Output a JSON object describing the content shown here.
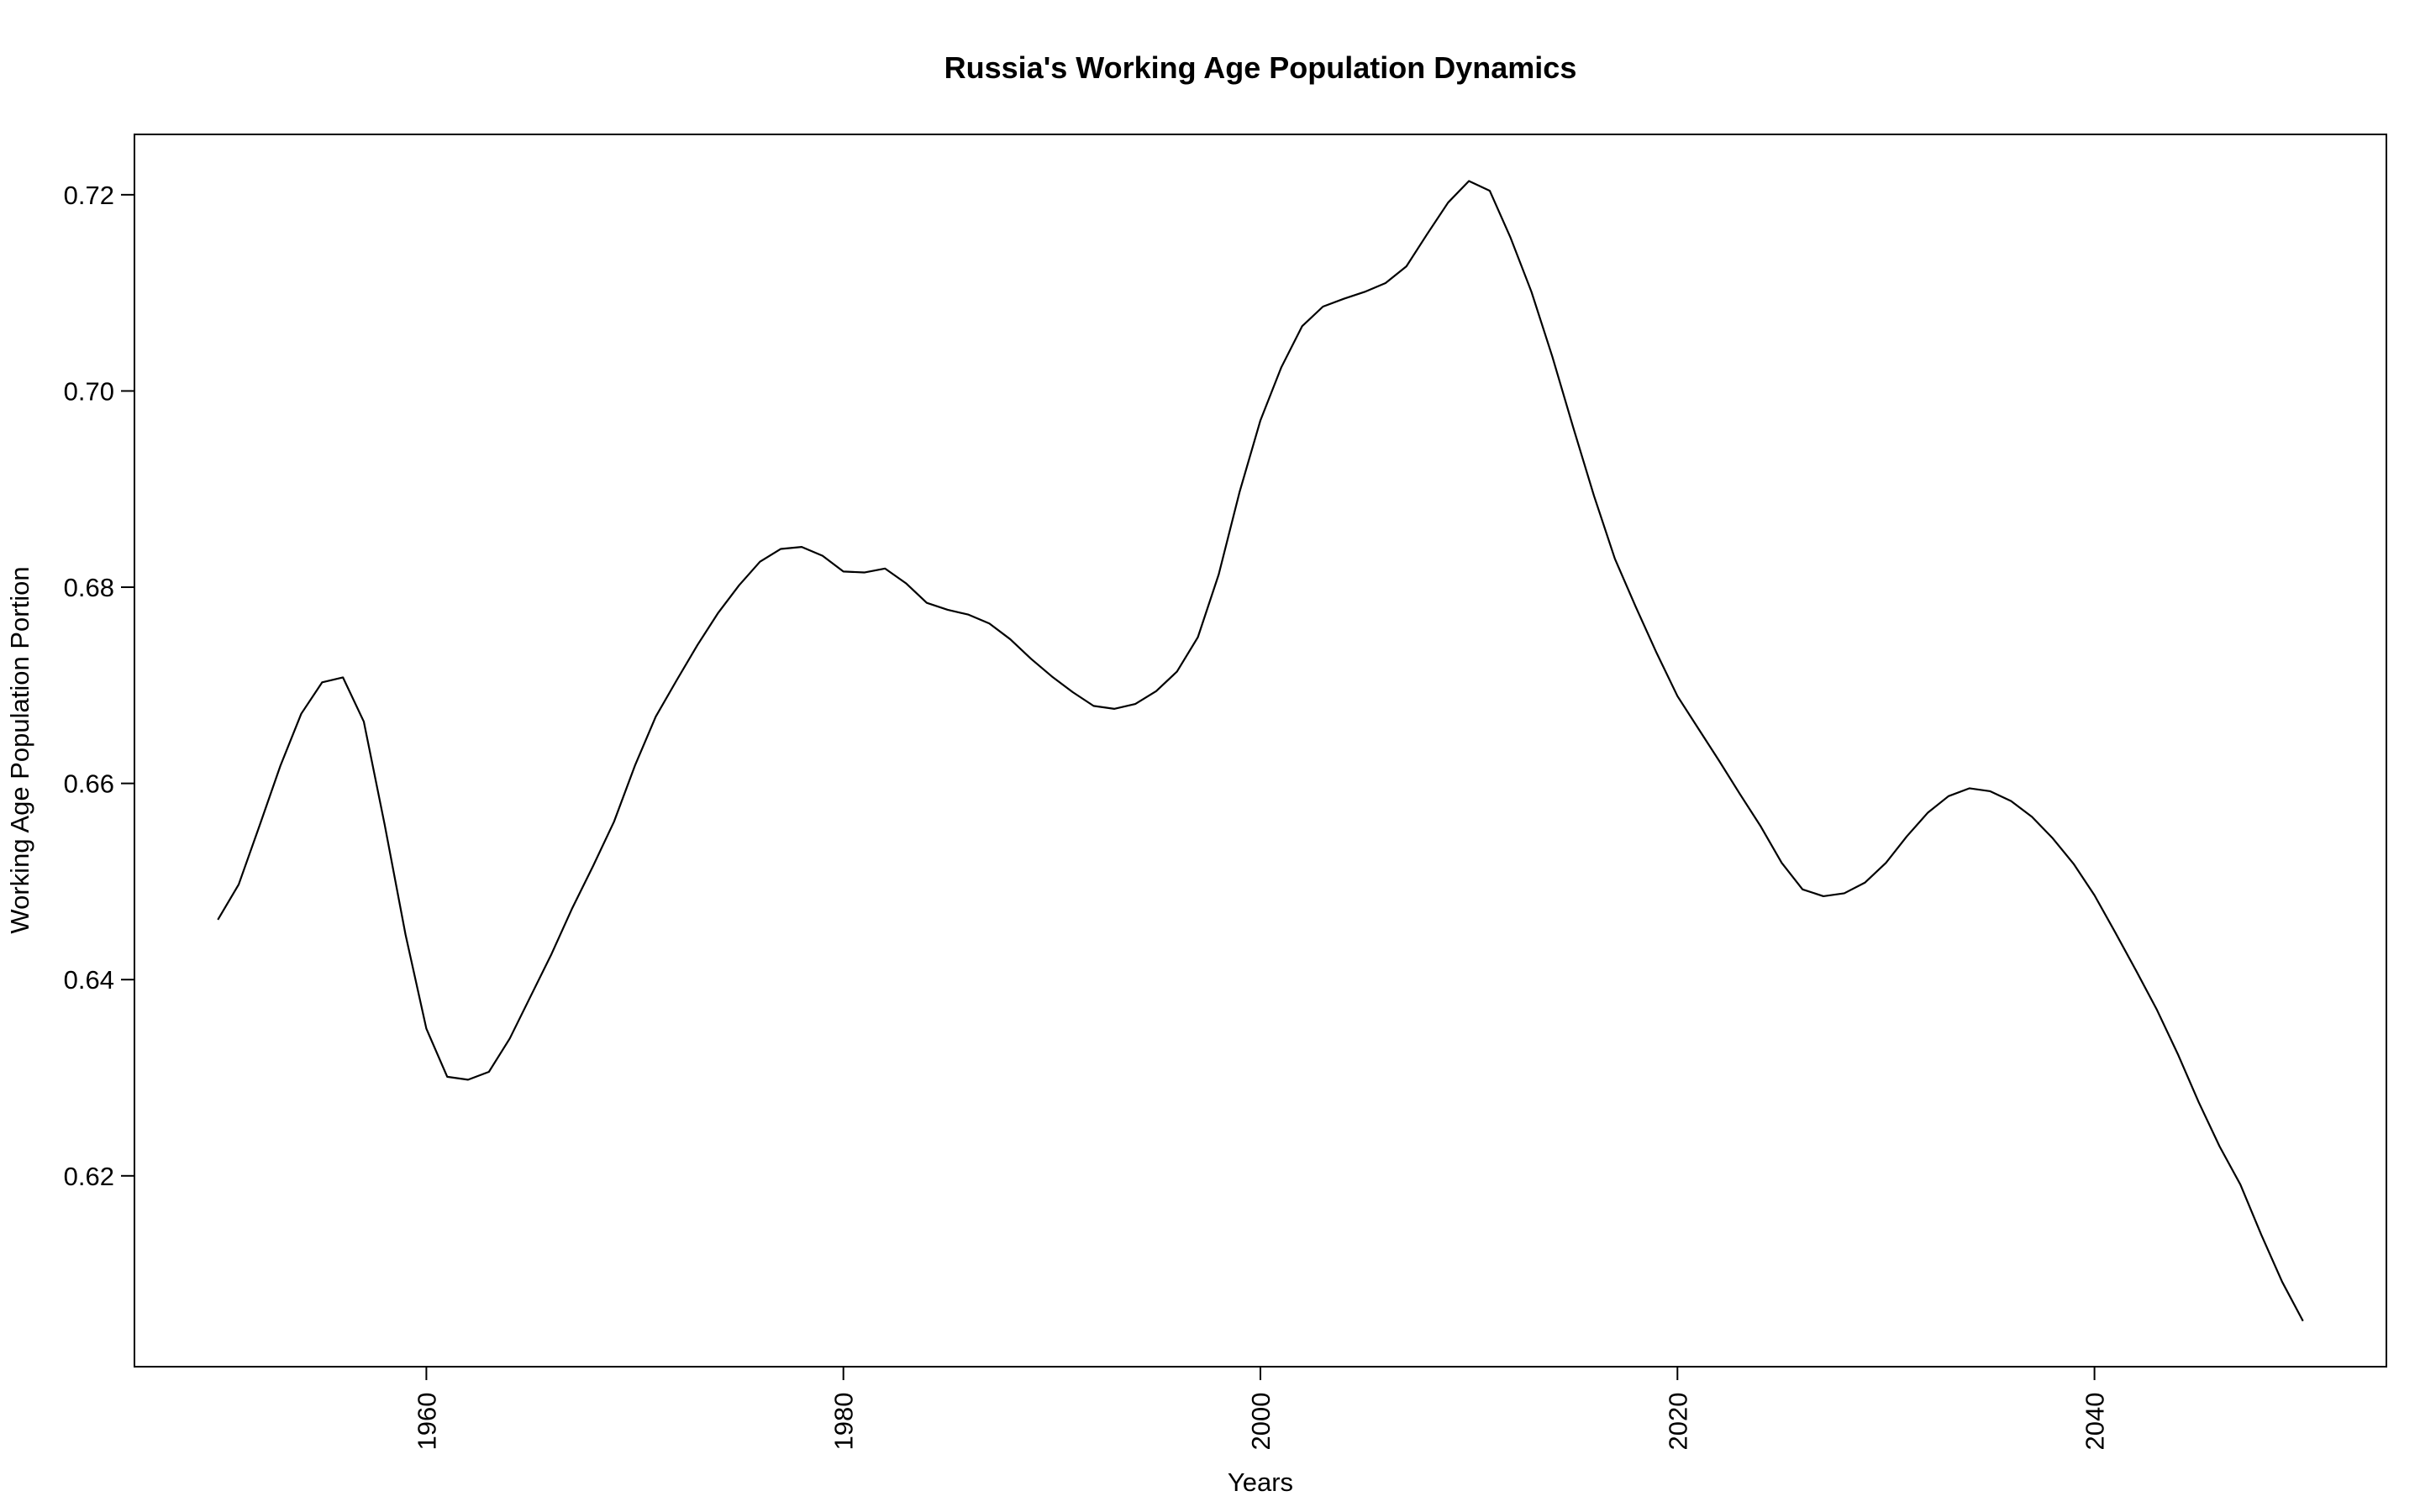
{
  "chart_data": {
    "type": "line",
    "title": "Russia's Working Age Population Dynamics",
    "xlabel": "Years",
    "ylabel": "Working Age Population Portion",
    "xlim": [
      1950,
      2050
    ],
    "ylim": [
      0.6052,
      0.7215
    ],
    "x_ticks": [
      1960,
      1980,
      2000,
      2020,
      2040
    ],
    "y_ticks": [
      0.62,
      0.64,
      0.66,
      0.68,
      0.7,
      0.72
    ],
    "y_tick_labels": [
      "0.62",
      "0.64",
      "0.66",
      "0.68",
      "0.70",
      "0.72"
    ],
    "grid": false,
    "legend": "none",
    "series": [
      {
        "x": [
          1950,
          1951,
          1952,
          1953,
          1954,
          1955,
          1956,
          1957,
          1958,
          1959,
          1960,
          1961,
          1962,
          1963,
          1964,
          1965,
          1966,
          1967,
          1968,
          1969,
          1970,
          1971,
          1972,
          1973,
          1974,
          1975,
          1976,
          1977,
          1978,
          1979,
          1980,
          1981,
          1982,
          1983,
          1984,
          1985,
          1986,
          1987,
          1988,
          1989,
          1990,
          1991,
          1992,
          1993,
          1994,
          1995,
          1996,
          1997,
          1998,
          1999,
          2000,
          2001,
          2002,
          2003,
          2004,
          2005,
          2006,
          2007,
          2008,
          2009,
          2010,
          2011,
          2012,
          2013,
          2014,
          2015,
          2016,
          2017,
          2018,
          2019,
          2020,
          2021,
          2022,
          2023,
          2024,
          2025,
          2026,
          2027,
          2028,
          2029,
          2030,
          2031,
          2032,
          2033,
          2034,
          2035,
          2036,
          2037,
          2038,
          2039,
          2040,
          2041,
          2042,
          2043,
          2044,
          2045,
          2046,
          2047,
          2048,
          2049,
          2050
        ],
        "values": [
          0.6461,
          0.6497,
          0.6557,
          0.6618,
          0.6671,
          0.6703,
          0.6708,
          0.6663,
          0.6558,
          0.6446,
          0.635,
          0.6301,
          0.6298,
          0.6306,
          0.634,
          0.6383,
          0.6426,
          0.6473,
          0.6516,
          0.6561,
          0.6618,
          0.6668,
          0.6705,
          0.6741,
          0.6774,
          0.6802,
          0.6826,
          0.6839,
          0.6841,
          0.6832,
          0.6816,
          0.6815,
          0.6819,
          0.6804,
          0.6784,
          0.6777,
          0.6772,
          0.6763,
          0.6747,
          0.6727,
          0.6709,
          0.6693,
          0.6679,
          0.6676,
          0.6681,
          0.6694,
          0.6714,
          0.6749,
          0.6813,
          0.6897,
          0.697,
          0.7024,
          0.7066,
          0.7086,
          0.7094,
          0.7101,
          0.711,
          0.7127,
          0.716,
          0.7192,
          0.7214,
          0.7204,
          0.7156,
          0.7101,
          0.7035,
          0.6963,
          0.6893,
          0.6829,
          0.678,
          0.6733,
          0.6689,
          0.6656,
          0.6623,
          0.6589,
          0.6556,
          0.6519,
          0.6492,
          0.6485,
          0.6488,
          0.6499,
          0.6519,
          0.6546,
          0.657,
          0.6587,
          0.6595,
          0.6592,
          0.6582,
          0.6566,
          0.6544,
          0.6518,
          0.6486,
          0.6448,
          0.6409,
          0.6369,
          0.6324,
          0.6275,
          0.623,
          0.6191,
          0.614,
          0.6092,
          0.6052
        ]
      }
    ]
  }
}
